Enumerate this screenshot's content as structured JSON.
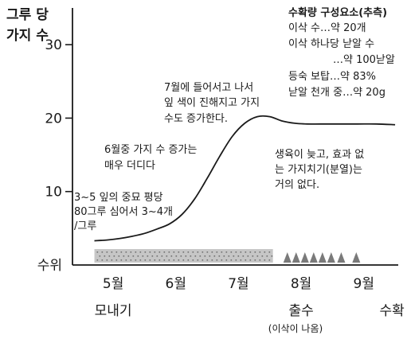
{
  "chart_data": {
    "type": "line",
    "ylabel_lines": [
      "그루 당",
      "가지 수"
    ],
    "y_ticks": [
      {
        "label": "30",
        "value": 30
      },
      {
        "label": "20",
        "value": 20
      },
      {
        "label": "10",
        "value": 10
      },
      {
        "label": "수위",
        "value": 0
      }
    ],
    "ylim": [
      0,
      35
    ],
    "x_months": [
      {
        "label": "5월",
        "value": 5
      },
      {
        "label": "6월",
        "value": 6
      },
      {
        "label": "7월",
        "value": 7
      },
      {
        "label": "8월",
        "value": 8
      },
      {
        "label": "9월",
        "value": 9
      }
    ],
    "xlim": [
      4.35,
      9.55
    ],
    "stages": [
      {
        "label": "모내기",
        "value": 5
      },
      {
        "label": "출수",
        "value": 8
      },
      {
        "label": "수확",
        "value": 9.45
      }
    ],
    "stage_note": "(이삭이 나옴)",
    "series": [
      {
        "x": [
          4.7,
          4.9,
          5.1,
          5.3,
          5.5,
          5.7,
          5.9,
          6.1,
          6.3,
          6.5,
          6.7,
          6.9,
          7.1,
          7.3,
          7.5,
          7.7,
          7.9,
          8.1,
          8.3,
          8.6,
          8.9,
          9.2,
          9.5
        ],
        "values": [
          3.3,
          3.4,
          3.6,
          3.9,
          4.3,
          4.9,
          5.6,
          6.9,
          9.0,
          11.8,
          14.8,
          17.5,
          19.3,
          20.2,
          20.2,
          19.6,
          19.3,
          19.2,
          19.2,
          19.2,
          19.2,
          19.2,
          19.1
        ]
      }
    ],
    "vegetative_band": {
      "x_start": 4.7,
      "x_end": 7.55
    },
    "panicle_markers": {
      "x": [
        7.78,
        7.92,
        8.06,
        8.2,
        8.34,
        8.48,
        8.64,
        8.88
      ]
    },
    "annotations": [
      {
        "lines": [
          "3~5 잎의 중묘 평당",
          "80그루 심어서 3~4개",
          "/그루"
        ]
      },
      {
        "lines": [
          "6월중 가지 수 증가는",
          "매우 더디다"
        ]
      },
      {
        "lines": [
          "7월에 들어서고 나서",
          "잎 색이 진해지고 가지",
          "수도 증가한다."
        ]
      },
      {
        "lines": [
          "생육이 늦고, 효과 없",
          "는 가지치기(분열)는",
          "거의 없다."
        ]
      }
    ],
    "yield_box": {
      "title": "수확량 구성요소(추측)",
      "lines": [
        "이삭 수…약 20개",
        "이삭 하나당 낟알 수",
        "…약 100낟알",
        "등숙 보탑…약 83%",
        "낟알 천개 중…약 20g"
      ]
    }
  }
}
